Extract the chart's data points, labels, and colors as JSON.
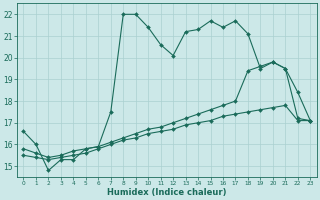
{
  "xlabel": "Humidex (Indice chaleur)",
  "background_color": "#cce8e8",
  "grid_color": "#aad0d0",
  "line_color": "#1a6b5a",
  "xlim": [
    -0.5,
    23.5
  ],
  "ylim": [
    14.5,
    22.5
  ],
  "x_ticks": [
    0,
    1,
    2,
    3,
    4,
    5,
    6,
    7,
    8,
    9,
    10,
    11,
    12,
    13,
    14,
    15,
    16,
    17,
    18,
    19,
    20,
    21,
    22,
    23
  ],
  "x_tick_labels": [
    "0",
    "1",
    "2",
    "3",
    "4",
    "5",
    "6",
    "7",
    "8",
    "9",
    "10",
    "11",
    "12",
    "13",
    "14",
    "15",
    "16",
    "17",
    "18",
    "19",
    "20",
    "21",
    "22",
    "23"
  ],
  "y_ticks": [
    15,
    16,
    17,
    18,
    19,
    20,
    21,
    22
  ],
  "series1_x": [
    0,
    1,
    2,
    3,
    4,
    5,
    6,
    7,
    8,
    9,
    10,
    11,
    12,
    13,
    14,
    15,
    16,
    17,
    18,
    19,
    20,
    21,
    22,
    23
  ],
  "series1_y": [
    16.6,
    16.0,
    14.8,
    15.3,
    15.3,
    15.8,
    15.9,
    17.5,
    22.0,
    22.0,
    21.4,
    20.6,
    20.1,
    21.2,
    21.3,
    21.7,
    21.4,
    21.7,
    21.1,
    19.5,
    19.8,
    19.5,
    18.4,
    17.1
  ],
  "series2_x": [
    0,
    1,
    2,
    3,
    4,
    5,
    6,
    7,
    8,
    9,
    10,
    11,
    12,
    13,
    14,
    15,
    16,
    17,
    18,
    19,
    20,
    21,
    22,
    23
  ],
  "series2_y": [
    15.8,
    15.6,
    15.4,
    15.5,
    15.7,
    15.8,
    15.9,
    16.1,
    16.3,
    16.5,
    16.7,
    16.8,
    17.0,
    17.2,
    17.4,
    17.6,
    17.8,
    18.0,
    19.4,
    19.6,
    19.8,
    19.5,
    17.2,
    17.1
  ],
  "series3_x": [
    0,
    1,
    2,
    3,
    4,
    5,
    6,
    7,
    8,
    9,
    10,
    11,
    12,
    13,
    14,
    15,
    16,
    17,
    18,
    19,
    20,
    21,
    22,
    23
  ],
  "series3_y": [
    15.5,
    15.4,
    15.3,
    15.4,
    15.5,
    15.6,
    15.8,
    16.0,
    16.2,
    16.3,
    16.5,
    16.6,
    16.7,
    16.9,
    17.0,
    17.1,
    17.3,
    17.4,
    17.5,
    17.6,
    17.7,
    17.8,
    17.1,
    17.1
  ]
}
